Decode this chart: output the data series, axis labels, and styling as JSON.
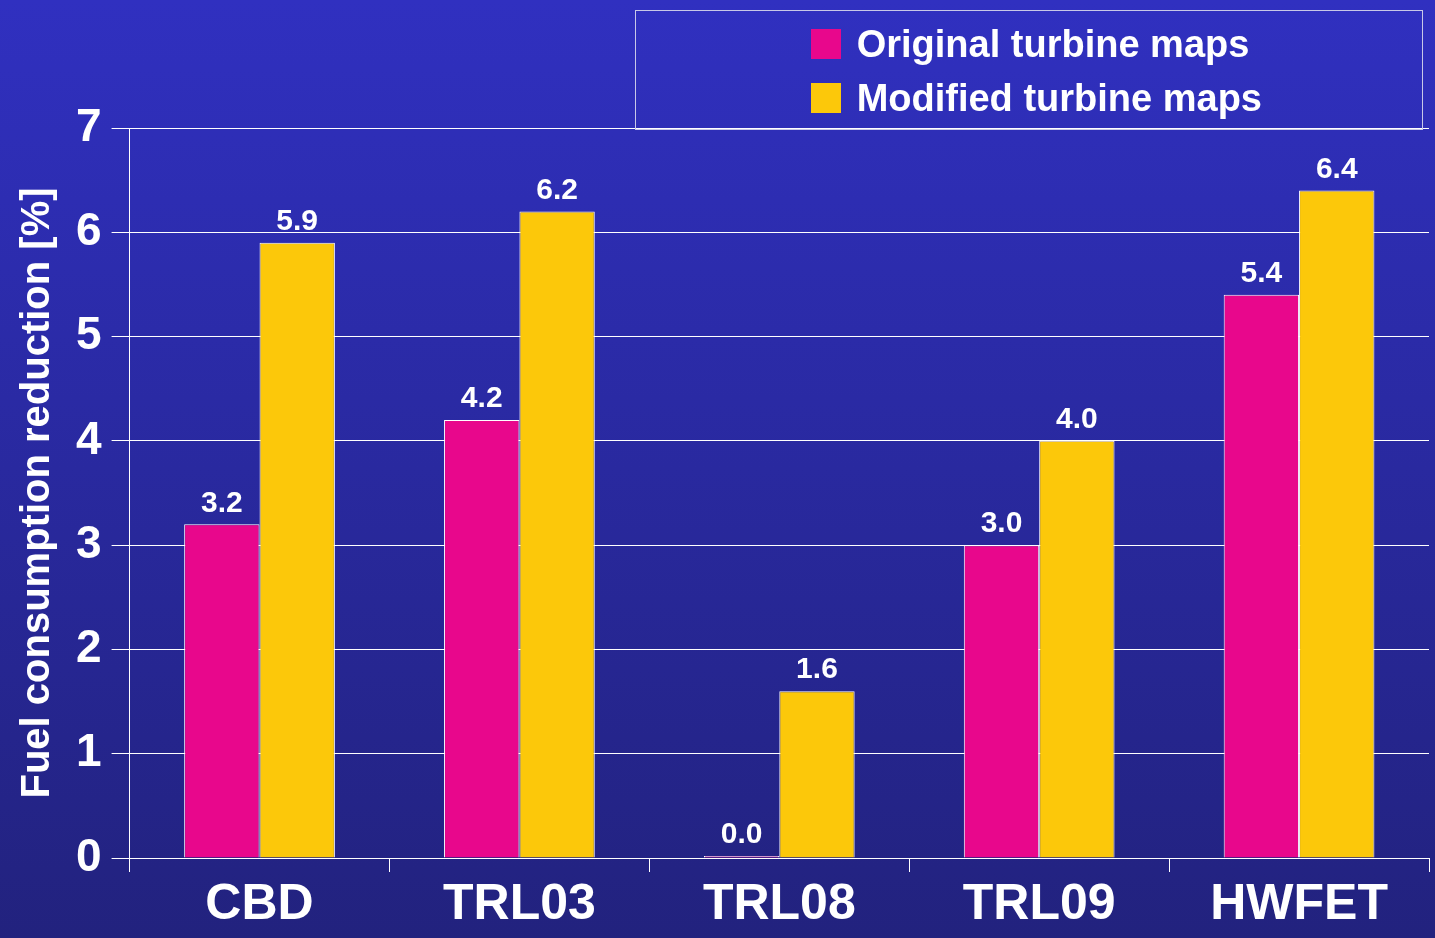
{
  "chart_data": {
    "type": "bar",
    "ylabel": "Fuel consumption reduction [%]",
    "categories": [
      "CBD",
      "TRL03",
      "TRL08",
      "TRL09",
      "HWFET"
    ],
    "series": [
      {
        "name": "Original turbine maps",
        "color": "#e8078c",
        "values": [
          3.2,
          4.2,
          0.0,
          3.0,
          5.4
        ],
        "value_labels": [
          "3.2",
          "4.2",
          "0.0",
          "3.0",
          "5.4"
        ]
      },
      {
        "name": "Modified turbine maps",
        "color": "#fcc80a",
        "values": [
          5.9,
          6.2,
          1.6,
          4.0,
          6.4
        ],
        "value_labels": [
          "5.9",
          "6.2",
          "1.6",
          "4.0",
          "6.4"
        ]
      }
    ],
    "ylim": [
      0,
      7
    ],
    "yticks": [
      0,
      1,
      2,
      3,
      4,
      5,
      6,
      7
    ],
    "grid": "y",
    "legend": "top right"
  }
}
